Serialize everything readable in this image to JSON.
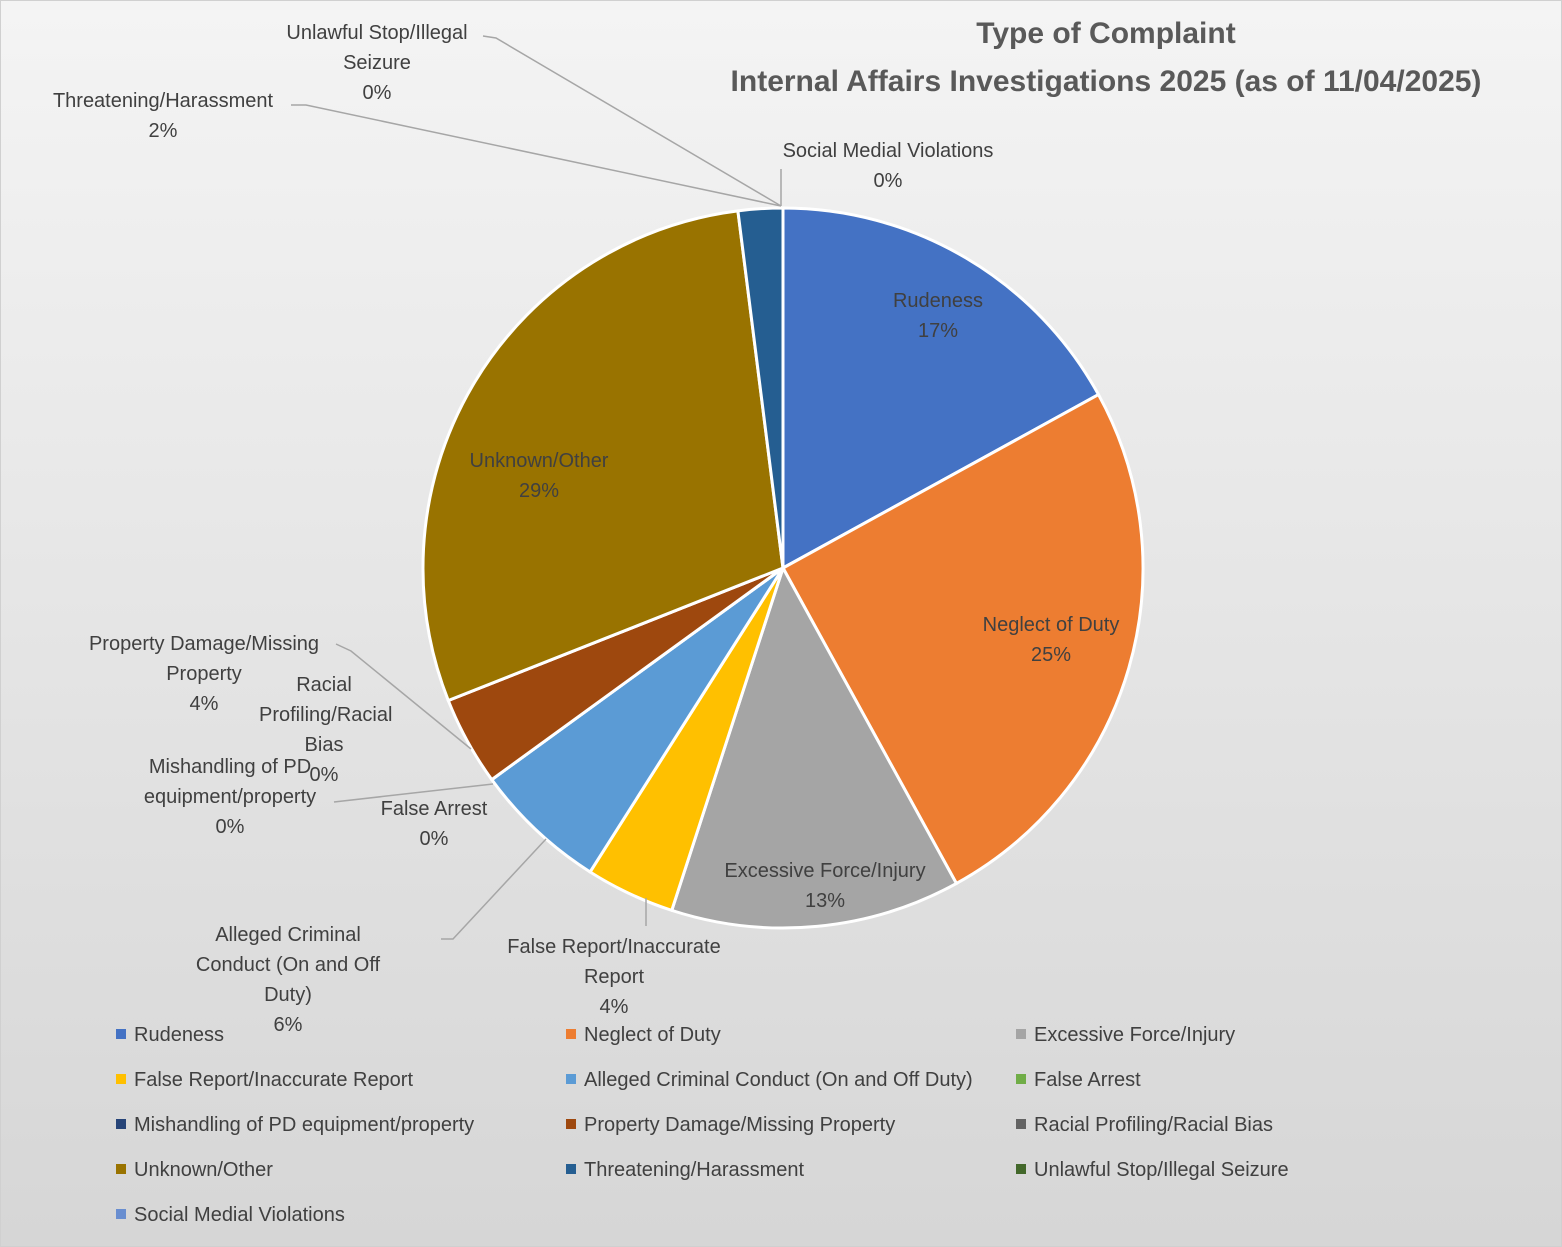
{
  "chart_data": {
    "type": "pie",
    "title": "Type of Complaint",
    "subtitle": "Internal Affairs Investigations 2025 (as of 11/04/2025)",
    "categories": [
      "Rudeness",
      "Neglect of Duty",
      "Excessive Force/Injury",
      "False Report/Inaccurate Report",
      "Alleged Criminal Conduct (On and Off Duty)",
      "False Arrest",
      "Mishandling of PD equipment/property",
      "Property Damage/Missing Property",
      "Racial Profiling/Racial Bias",
      "Unknown/Other",
      "Threatening/Harassment",
      "Unlawful Stop/Illegal Seizure",
      "Social Medial Violations"
    ],
    "values": [
      17,
      25,
      13,
      4,
      6,
      0,
      0,
      4,
      0,
      29,
      2,
      0,
      0
    ],
    "value_labels": [
      "17%",
      "25%",
      "13%",
      "4%",
      "6%",
      "0%",
      "0%",
      "4%",
      "0%",
      "29%",
      "2%",
      "0%",
      "0%"
    ],
    "colors": [
      "#4472c4",
      "#ed7d31",
      "#a5a5a5",
      "#ffc000",
      "#5b9bd5",
      "#70ad47",
      "#264478",
      "#9e480e",
      "#636363",
      "#997300",
      "#255e91",
      "#43682b",
      "#698ed0"
    ],
    "legend": "bottom"
  }
}
